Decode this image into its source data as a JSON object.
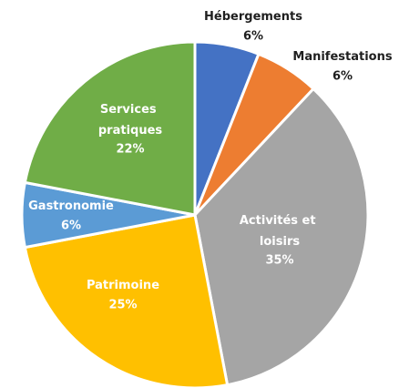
{
  "chart_data": {
    "type": "pie",
    "categories": [
      "Hébergements",
      "Manifestations",
      "Activités et loisirs",
      "Patrimoine",
      "Gastronomie",
      "Services pratiques"
    ],
    "values": [
      6,
      6,
      35,
      25,
      6,
      22
    ],
    "value_labels": [
      "6%",
      "6%",
      "35%",
      "25%",
      "6%",
      "22%"
    ],
    "colors": [
      "#4472c4",
      "#ed7d31",
      "#a5a5a5",
      "#ffc000",
      "#5b9bd5",
      "#70ad47"
    ]
  }
}
